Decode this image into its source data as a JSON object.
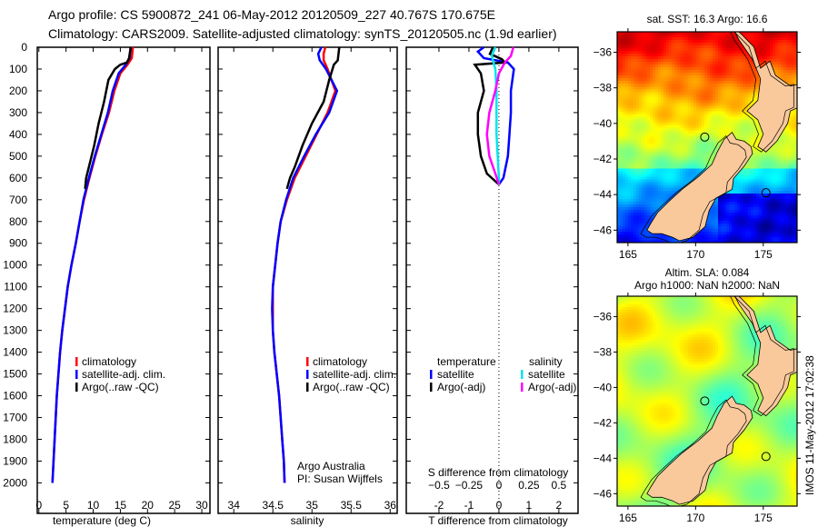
{
  "title_line1": "Argo profile: CS 5900872_241 06-May-2012 20120509_227 40.767S 170.675E",
  "title_line2": "Climatology: CARS2009. Satellite-adjusted climatology: synTS_20120505.nc (1.9d earlier)",
  "credit_line1": "Argo Australia",
  "credit_line2": "PI: Susan Wijffels",
  "imos_stamp": "IMOS 11-May-2012 17:02:38",
  "colors": {
    "climatology": "#ff0000",
    "satellite": "#0000ff",
    "argo": "#000000",
    "sal_satellite": "#00e5ee",
    "sal_argo": "#ff00ff",
    "land": "#f9c89b"
  },
  "chart_data": [
    {
      "type": "line",
      "name": "temperature-profile",
      "xlabel": "temperature (deg C)",
      "ylabel": "depth",
      "xlim": [
        -0.3,
        31.5
      ],
      "ylim": [
        2140,
        0
      ],
      "xticks": [
        0,
        5,
        10,
        15,
        20,
        25,
        30
      ],
      "yticks": [
        0,
        100,
        200,
        300,
        400,
        500,
        600,
        700,
        800,
        900,
        1000,
        1100,
        1200,
        1300,
        1400,
        1500,
        1600,
        1700,
        1800,
        1900,
        2000
      ],
      "legend": [
        "climatology",
        "satellite-adj. clim.",
        "Argo(..raw -QC)"
      ],
      "series": [
        {
          "name": "climatology",
          "color": "#ff0000",
          "depth": [
            0,
            50,
            80,
            120,
            200,
            300,
            400,
            500,
            600,
            700,
            800,
            900,
            1000,
            1100,
            1200,
            1300,
            1400,
            1500,
            1600,
            1700,
            1800,
            1900,
            2000
          ],
          "values": [
            17.3,
            17.1,
            16.3,
            15.0,
            13.9,
            12.9,
            11.6,
            10.4,
            9.3,
            8.3,
            7.5,
            6.8,
            6.0,
            5.3,
            4.8,
            4.3,
            3.9,
            3.6,
            3.3,
            3.1,
            2.9,
            2.7,
            2.5
          ]
        },
        {
          "name": "satellite-adj. clim.",
          "color": "#0000ff",
          "depth": [
            0,
            50,
            80,
            120,
            200,
            300,
            400,
            500,
            600,
            700,
            800,
            900,
            1000,
            1100,
            1200,
            1300,
            1400,
            1500,
            1600,
            1700,
            1800,
            1900,
            2000
          ],
          "values": [
            16.9,
            16.7,
            16.0,
            14.7,
            13.6,
            12.7,
            11.5,
            10.3,
            9.2,
            8.2,
            7.5,
            6.8,
            6.0,
            5.3,
            4.8,
            4.3,
            3.9,
            3.6,
            3.3,
            3.1,
            2.9,
            2.7,
            2.5
          ]
        },
        {
          "name": "Argo(..raw -QC)",
          "color": "#000000",
          "depth": [
            0,
            50,
            70,
            80,
            100,
            150,
            250,
            350,
            450,
            550,
            600,
            650
          ],
          "values": [
            16.9,
            16.6,
            16.2,
            15.0,
            14.0,
            12.8,
            12.0,
            11.0,
            10.2,
            9.2,
            8.7,
            8.5
          ]
        }
      ]
    },
    {
      "type": "line",
      "name": "salinity-profile",
      "xlabel": "salinity",
      "xlim": [
        33.8,
        36.09
      ],
      "ylim": [
        2140,
        0
      ],
      "xticks": [
        34,
        34.5,
        35,
        35.5,
        36
      ],
      "legend": [
        "climatology",
        "satellite-adj. clim.",
        "Argo(..raw -QC)"
      ],
      "series": [
        {
          "name": "climatology",
          "color": "#ff0000",
          "depth": [
            0,
            30,
            60,
            100,
            200,
            300,
            400,
            500,
            600,
            700,
            800,
            900,
            1000,
            1100,
            1200,
            1300,
            1400,
            1500,
            1600,
            1700,
            1800,
            1900,
            2000
          ],
          "values": [
            35.17,
            35.15,
            35.15,
            35.2,
            35.3,
            35.2,
            35.06,
            34.92,
            34.78,
            34.68,
            34.6,
            34.56,
            34.53,
            34.5,
            34.5,
            34.5,
            34.52,
            34.55,
            34.58,
            34.6,
            34.62,
            34.64,
            34.65
          ]
        },
        {
          "name": "satellite-adj. clim.",
          "color": "#0000ff",
          "depth": [
            0,
            30,
            60,
            100,
            200,
            300,
            400,
            500,
            600,
            700,
            800,
            900,
            1000,
            1100,
            1200,
            1300,
            1400,
            1500,
            1600,
            1700,
            1800,
            1900,
            2000
          ],
          "values": [
            35.12,
            35.08,
            35.1,
            35.18,
            35.32,
            35.22,
            35.05,
            34.9,
            34.76,
            34.67,
            34.6,
            34.56,
            34.53,
            34.5,
            34.49,
            34.5,
            34.52,
            34.55,
            34.58,
            34.6,
            34.62,
            34.64,
            34.65
          ]
        },
        {
          "name": "Argo(..raw -QC)",
          "color": "#000000",
          "depth": [
            0,
            60,
            80,
            150,
            250,
            350,
            450,
            550,
            600,
            650
          ],
          "values": [
            35.35,
            35.33,
            35.28,
            35.22,
            35.15,
            35.0,
            34.88,
            34.78,
            34.72,
            34.68
          ]
        }
      ]
    },
    {
      "type": "line",
      "name": "difference-profile",
      "xlabel": "T difference from climatology",
      "x2label": "S difference from climatology",
      "xlim": [
        -3.09,
        2.64
      ],
      "ylim": [
        2140,
        0
      ],
      "xticks": [
        -2,
        -1,
        0,
        1,
        2
      ],
      "x2ticks": [
        -0.5,
        -0.25,
        0,
        0.25,
        0.5
      ],
      "legend_temperature_title": "temperature",
      "legend_salinity_title": "salinity",
      "legend": [
        "satellite",
        "Argo(-adj)",
        "satellite",
        "Argo(-adj)"
      ],
      "series": [
        {
          "name": "T satellite",
          "color": "#0000ff",
          "units": "T",
          "depth": [
            0,
            20,
            50,
            70,
            100,
            200,
            300,
            400,
            500,
            600,
            630
          ],
          "values": [
            -0.5,
            -0.7,
            -0.5,
            0.3,
            0.5,
            0.4,
            0.4,
            0.35,
            0.3,
            0.15,
            0.0
          ]
        },
        {
          "name": "T Argo(-adj)",
          "color": "#000000",
          "units": "T",
          "depth": [
            0,
            30,
            55,
            70,
            80,
            120,
            200,
            300,
            400,
            500,
            580,
            630
          ],
          "values": [
            -0.2,
            -0.3,
            0.1,
            0.2,
            -0.8,
            -0.6,
            -0.5,
            -0.7,
            -0.7,
            -0.6,
            -0.4,
            0.0
          ]
        },
        {
          "name": "S satellite",
          "color": "#00e5ee",
          "units": "S",
          "depth": [
            0,
            40,
            100,
            200,
            300,
            400,
            500,
            600,
            630
          ],
          "values": [
            -0.03,
            -0.06,
            -0.03,
            -0.02,
            -0.02,
            -0.02,
            -0.01,
            0.0,
            0.0
          ]
        },
        {
          "name": "S Argo(-adj)",
          "color": "#ff00ff",
          "units": "S",
          "depth": [
            0,
            40,
            70,
            120,
            200,
            300,
            400,
            500,
            580,
            630
          ],
          "values": [
            0.12,
            0.1,
            0.05,
            0.0,
            -0.03,
            -0.08,
            -0.1,
            -0.08,
            -0.03,
            0.0
          ]
        }
      ]
    },
    {
      "type": "heatmap",
      "name": "sst-map",
      "title": "sat. SST: 16.3 Argo: 16.6",
      "xlim": [
        164.2,
        177.5
      ],
      "ylim": [
        -46.7,
        -34.85
      ],
      "xticks": [
        165,
        170,
        175
      ],
      "yticks": [
        -36,
        -38,
        -40,
        -42,
        -44,
        -46
      ],
      "argo_position": {
        "lat": -40.767,
        "lon": 170.675
      }
    },
    {
      "type": "heatmap",
      "name": "sla-map",
      "title_line1": "Altim. SLA: 0.084",
      "title_line2": "Argo h1000: NaN h2000: NaN",
      "xlim": [
        164.2,
        177.5
      ],
      "ylim": [
        -46.7,
        -34.85
      ],
      "xticks": [
        165,
        170,
        175
      ],
      "yticks": [
        -36,
        -38,
        -40,
        -42,
        -44,
        -46
      ],
      "argo_position": {
        "lat": -40.767,
        "lon": 170.675
      }
    }
  ]
}
